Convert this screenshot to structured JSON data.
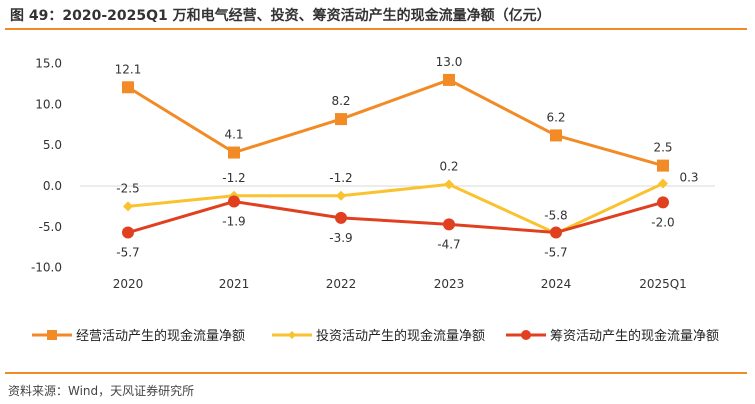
{
  "title": "图 49：2020-2025Q1 万和电气经营、投资、筹资活动产生的现金流量净额（亿元）",
  "source": "资料来源：Wind，天风证券研究所",
  "chart_data": {
    "type": "line",
    "categories": [
      "2020",
      "2021",
      "2022",
      "2023",
      "2024",
      "2025Q1"
    ],
    "ylim": [
      -10,
      15
    ],
    "yticks": [
      "15.0",
      "10.0",
      "5.0",
      "0.0",
      "-5.0",
      "-10.0"
    ],
    "legend_position": "bottom",
    "series": [
      {
        "name": "经营活动产生的现金流量净额",
        "color": "#f28a26",
        "marker": "square",
        "values": [
          12.1,
          4.1,
          8.2,
          13.0,
          6.2,
          2.5
        ],
        "labels": [
          "12.1",
          "4.1",
          "8.2",
          "13.0",
          "6.2",
          "2.5"
        ]
      },
      {
        "name": "投资活动产生的现金流量净额",
        "color": "#f9c22e",
        "marker": "diamond",
        "values": [
          -2.5,
          -1.2,
          -1.2,
          0.2,
          -5.8,
          0.3
        ],
        "labels": [
          "-2.5",
          "-1.2",
          "-1.2",
          "0.2",
          "-5.8",
          "0.3"
        ]
      },
      {
        "name": "筹资活动产生的现金流量净额",
        "color": "#e0401f",
        "marker": "circle",
        "values": [
          -5.7,
          -1.9,
          -3.9,
          -4.7,
          -5.7,
          -2.0
        ],
        "labels": [
          "-5.7",
          "-1.9",
          "-3.9",
          "-4.7",
          "-5.7",
          "-2.0"
        ]
      }
    ]
  }
}
